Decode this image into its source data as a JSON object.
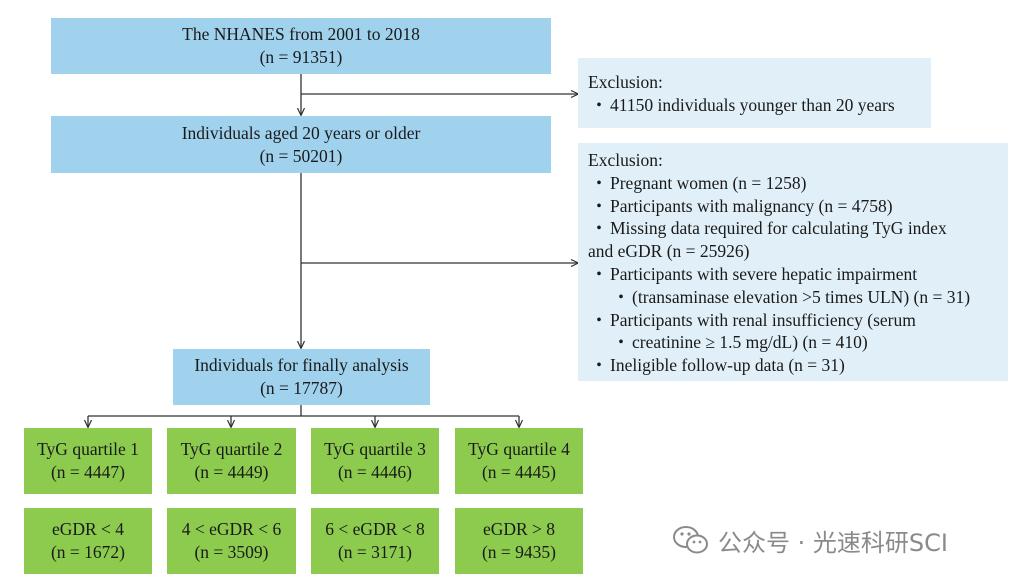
{
  "source_box": {
    "title": "The NHANES from 2001 to 2018",
    "count": "(n = 91351)"
  },
  "exclusion_1": {
    "title": "Exclusion:",
    "items": [
      "41150 individuals younger than 20 years"
    ]
  },
  "adult_box": {
    "title": "Individuals aged 20 years or older",
    "count": "(n = 50201)"
  },
  "exclusion_2": {
    "title": "Exclusion:",
    "items": [
      "Pregnant women (n = 1258)",
      "Participants with malignancy (n = 4758)",
      "Missing data required for calculating TyG index",
      "and eGDR (n = 25926)",
      "Participants with severe hepatic impairment",
      "(transaminase elevation >5 times ULN) (n = 31)",
      "Participants with renal insufficiency (serum",
      "creatinine ≥ 1.5 mg/dL) (n = 410)",
      "Ineligible follow-up data (n = 31)"
    ]
  },
  "final_box": {
    "title": "Individuals for finally analysis",
    "count": "(n = 17787)"
  },
  "quartiles": [
    {
      "label": "TyG quartile 1",
      "count": "(n = 4447)"
    },
    {
      "label": "TyG quartile 2",
      "count": "(n = 4449)"
    },
    {
      "label": "TyG quartile 3",
      "count": "(n = 4446)"
    },
    {
      "label": "TyG quartile 4",
      "count": "(n = 4445)"
    }
  ],
  "egdr": [
    {
      "label": "eGDR < 4",
      "count": "(n = 1672)"
    },
    {
      "label": "4 < eGDR < 6",
      "count": "(n = 3509)"
    },
    {
      "label": "6 < eGDR < 8",
      "count": "(n = 3171)"
    },
    {
      "label": "eGDR > 8",
      "count": "(n = 9435)"
    }
  ],
  "watermark": {
    "text": "公众号 · 光速科研SCI"
  },
  "colors": {
    "blue_box": "#a0d2ee",
    "green_box": "#8ccb4e",
    "exclusion_box": "#e1f0f8",
    "line": "#333333"
  }
}
